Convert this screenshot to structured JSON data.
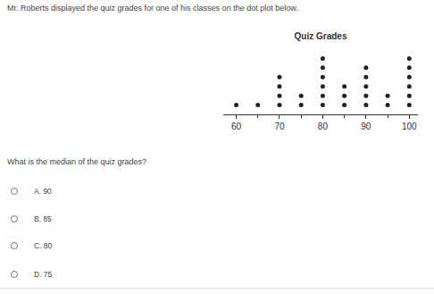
{
  "header": {
    "text": "Mr. Roberts displayed the quiz grades for one of his classes on the dot plot below."
  },
  "chart_data": {
    "type": "dot",
    "title": "Quiz Grades",
    "x": [
      60,
      65,
      70,
      75,
      80,
      85,
      90,
      95,
      100
    ],
    "values": [
      1,
      1,
      4,
      2,
      6,
      3,
      5,
      2,
      6
    ],
    "xlim": [
      57,
      102
    ],
    "xticks": [
      60,
      70,
      80,
      90,
      100
    ],
    "ylim": [
      0,
      7
    ],
    "tick_labels": "x",
    "color": "#222222",
    "grid": false
  },
  "question": {
    "text": "What is the median of the quiz grades?",
    "choices": [
      "A. 90",
      "B. 85",
      "C. 80",
      "D. 75"
    ]
  }
}
